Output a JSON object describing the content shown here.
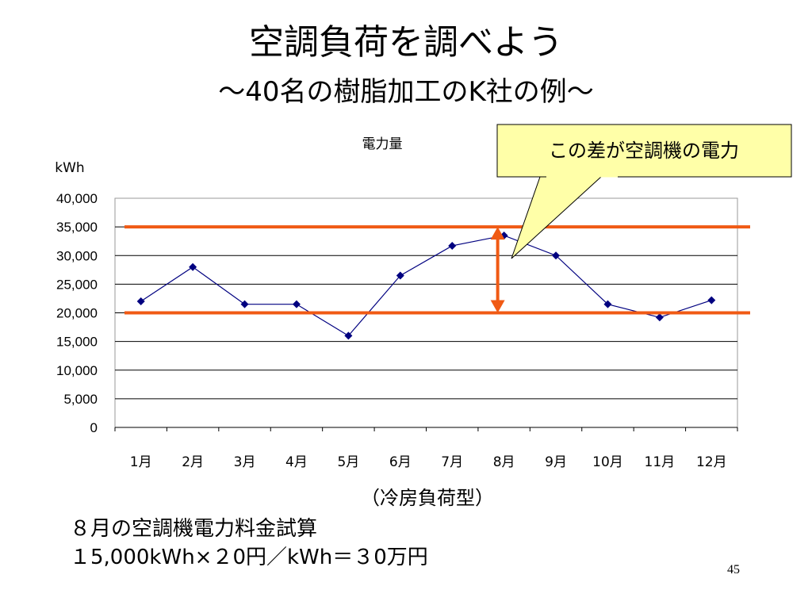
{
  "slide": {
    "title": "空調負荷を調べよう",
    "subtitle": "～40名の樹脂加工のK社の例～",
    "caption": "（冷房負荷型）",
    "calc_line1": "８月の空調機電力料金試算",
    "calc_line2": "１5,000kWh×２0円／kWh＝３0万円",
    "page_number": "45"
  },
  "callout": {
    "text": "この差が空調機の電力",
    "fill": "#ffffa8"
  },
  "colors": {
    "series": "#000080",
    "reference_lines": "#f05a14"
  },
  "chart_data": {
    "type": "line",
    "title": "電力量",
    "ylabel": "kWh",
    "xlabel": "",
    "categories": [
      "1月",
      "2月",
      "3月",
      "4月",
      "5月",
      "6月",
      "7月",
      "8月",
      "9月",
      "10月",
      "11月",
      "12月"
    ],
    "series": [
      {
        "values": [
          22000,
          28000,
          21500,
          21500,
          16000,
          26500,
          31700,
          33500,
          30000,
          21500,
          19200,
          22200
        ]
      }
    ],
    "yticks": [
      {
        "value": 0,
        "label": "0"
      },
      {
        "value": 5000,
        "label": "5,000"
      },
      {
        "value": 10000,
        "label": "10,000"
      },
      {
        "value": 15000,
        "label": "15,000"
      },
      {
        "value": 20000,
        "label": "20,000"
      },
      {
        "value": 25000,
        "label": "25,000"
      },
      {
        "value": 30000,
        "label": "30,000"
      },
      {
        "value": 35000,
        "label": "35,000"
      },
      {
        "value": 40000,
        "label": "40,000"
      }
    ],
    "ylim": [
      0,
      40000
    ],
    "grid": true,
    "reference_lines": [
      35000,
      20000
    ],
    "difference_arrow": {
      "from": 20000,
      "to": 35000,
      "category": "8月"
    }
  }
}
